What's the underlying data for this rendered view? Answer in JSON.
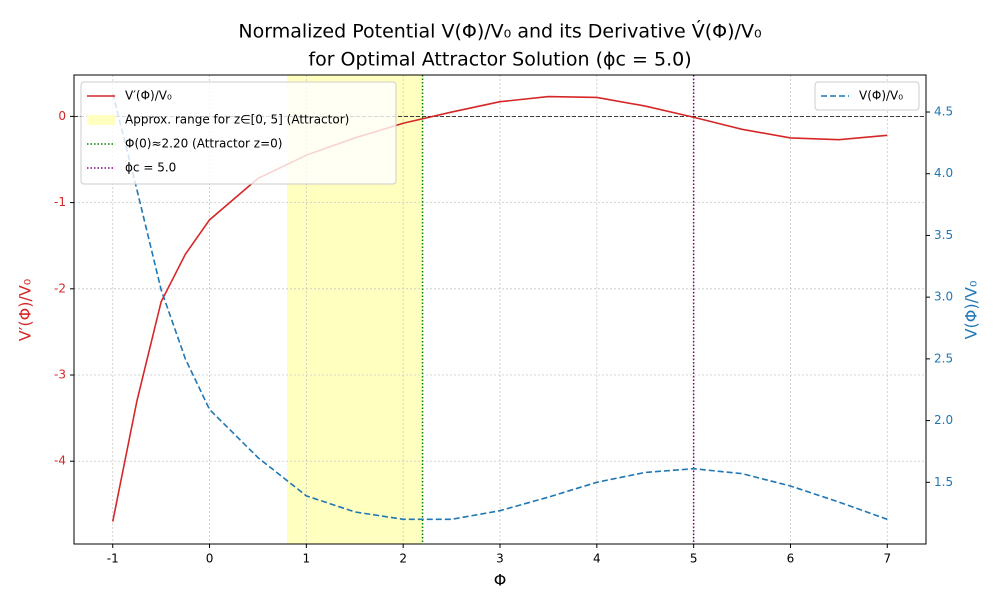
{
  "chart_data": {
    "type": "line",
    "title": [
      "Normalized Potential V(Φ)/V₀ and its Derivative V́(Φ)/V₀",
      "for Optimal Attractor Solution (ϕc = 5.0)"
    ],
    "x_label": "Φ",
    "y_label": "V′(Φ)/V₀",
    "y2_label": "V(Φ)/V₀",
    "x": [
      -1,
      -0.75,
      -0.5,
      -0.25,
      0,
      0.5,
      1,
      1.5,
      2,
      2.5,
      3,
      3.5,
      4,
      4.5,
      5,
      5.5,
      6,
      6.5,
      7
    ],
    "series": [
      {
        "name": "V′(Φ)/V₀",
        "color": "#d62728",
        "linestyle": "solid",
        "values": [
          -4.7,
          -3.3,
          -2.15,
          -1.6,
          -1.2,
          -0.72,
          -0.45,
          -0.25,
          -0.08,
          0.05,
          0.17,
          0.23,
          0.22,
          0.12,
          -0.01,
          -0.15,
          -0.25,
          -0.27,
          -0.22
        ]
      },
      {
        "name": "V(Φ)/V₀",
        "color": "#1f77b4",
        "linestyle": "dashed",
        "axis": "y2",
        "values": [
          4.65,
          3.87,
          3.06,
          2.5,
          2.09,
          1.7,
          1.39,
          1.26,
          1.2,
          1.2,
          1.27,
          1.38,
          1.5,
          1.58,
          1.61,
          1.57,
          1.47,
          1.34,
          1.2
        ]
      }
    ],
    "span": {
      "x": [
        0.8,
        2.2
      ],
      "label": "Approx. range for z∈[0, 5] (Attractor)",
      "color": "#ffffc0"
    },
    "vlines": [
      {
        "x": 2.2,
        "label": "Φ(0)≈2.20 (Attractor z=0)",
        "color": "green"
      },
      {
        "x": 5.0,
        "label": "ϕc = 5.0",
        "color": "purple"
      }
    ],
    "hline": 0,
    "xlim": [
      -1.4,
      7.4
    ],
    "xticks": [
      -1,
      0,
      1,
      2,
      3,
      4,
      5,
      6,
      7
    ],
    "ylim": [
      -4.96,
      0.48
    ],
    "yticks": [
      -4,
      -3,
      -2,
      -1,
      0
    ],
    "y2lim": [
      1.0,
      4.8
    ],
    "y2ticks": [
      1.5,
      {
        "value": 2,
        "label": "2.0"
      },
      2.5,
      {
        "value": 3,
        "label": "3.0"
      },
      3.5,
      {
        "value": 4,
        "label": "4.0"
      },
      4.5
    ],
    "grid": true,
    "legend": "upper left",
    "legend2": "upper right"
  }
}
